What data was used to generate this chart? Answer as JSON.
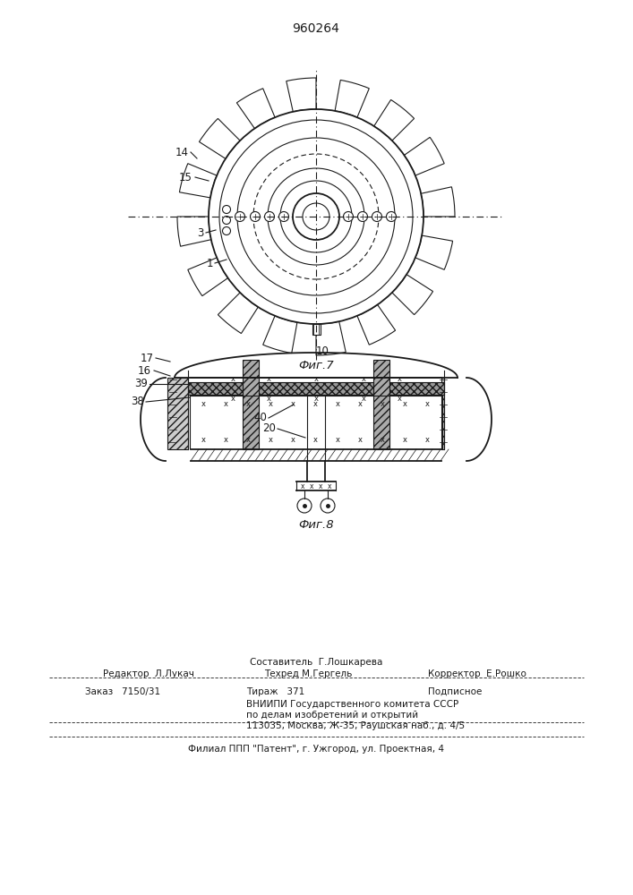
{
  "title": "960264",
  "fig7_label": "Фиг.7",
  "fig8_label": "Фиг.8",
  "bg_color": "#ffffff",
  "line_color": "#1a1a1a",
  "label_14": "14",
  "label_15": "15",
  "label_3": "3",
  "label_1": "1",
  "label_10": "10",
  "label_17": "17",
  "label_16": "16",
  "label_39": "39",
  "label_38": "38",
  "label_40": "40",
  "label_20": "20",
  "footer_line1": "Составитель  Г.Лошкарева",
  "footer_line2_left": "Редактор  Л.Лукач",
  "footer_line2_mid": "Техред М.Гергель",
  "footer_line2_right": "Корректор  Е.Рошко",
  "footer_line3_left": "Заказ   7150/31",
  "footer_line3_mid": "Тираж   371",
  "footer_line3_right": "Подписное",
  "footer_line4": "ВНИИПИ Государственного комитета СССР",
  "footer_line5": "по делам изобретений и открытий",
  "footer_line6": "113035, Москва, Ж-35, Раушская наб., д. 4/5",
  "footer_line7": "Филиал ППП \"Патент\", г. Ужгород, ул. Проектная, 4"
}
